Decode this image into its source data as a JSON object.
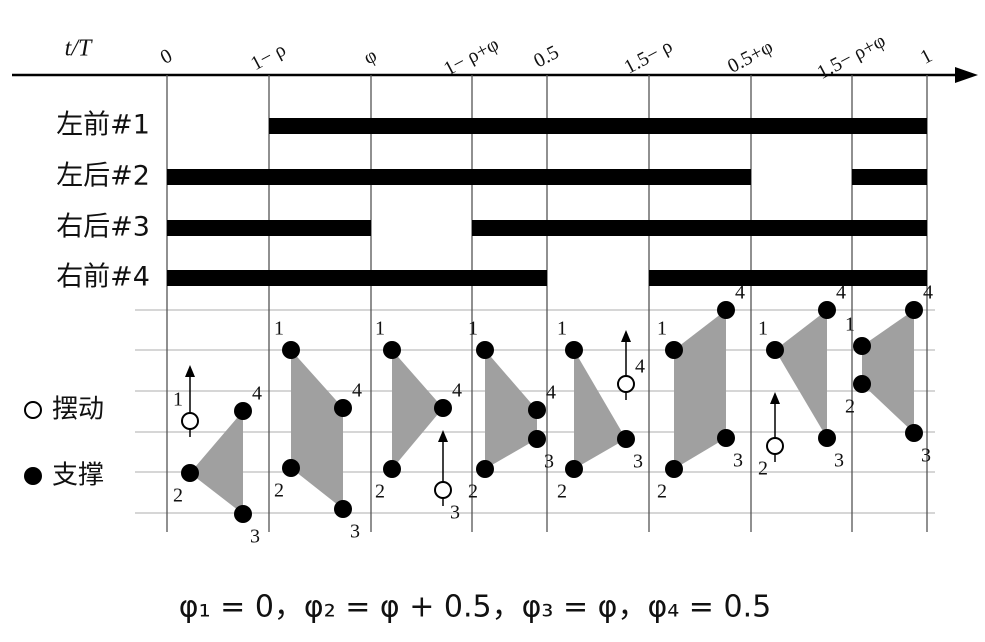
{
  "axis_label": "t/T",
  "ticks": [
    "0",
    "1− ρ",
    "φ",
    "1− ρ+φ",
    "0.5",
    "1.5− ρ",
    "0.5+φ",
    "1.5− ρ+φ",
    "1"
  ],
  "rows": [
    "左前#1",
    "左后#2",
    "右后#3",
    "右前#4"
  ],
  "legend": [
    "摆动",
    "支撑"
  ],
  "panels": [
    [
      "1",
      "2",
      "3",
      "4"
    ],
    [
      "1",
      "2",
      "3",
      "4"
    ],
    [
      "1",
      "2",
      "3",
      "4"
    ],
    [
      "1",
      "2",
      "3",
      "4"
    ],
    [
      "1",
      "2",
      "3",
      "4"
    ],
    [
      "1",
      "2",
      "3",
      "4"
    ],
    [
      "1",
      "2",
      "3",
      "4"
    ],
    [
      "1",
      "2",
      "3",
      "4"
    ]
  ],
  "formula": "φ₁ = 0，φ₂ = φ + 0.5，φ₃ = φ，φ₄ = 0.5"
}
